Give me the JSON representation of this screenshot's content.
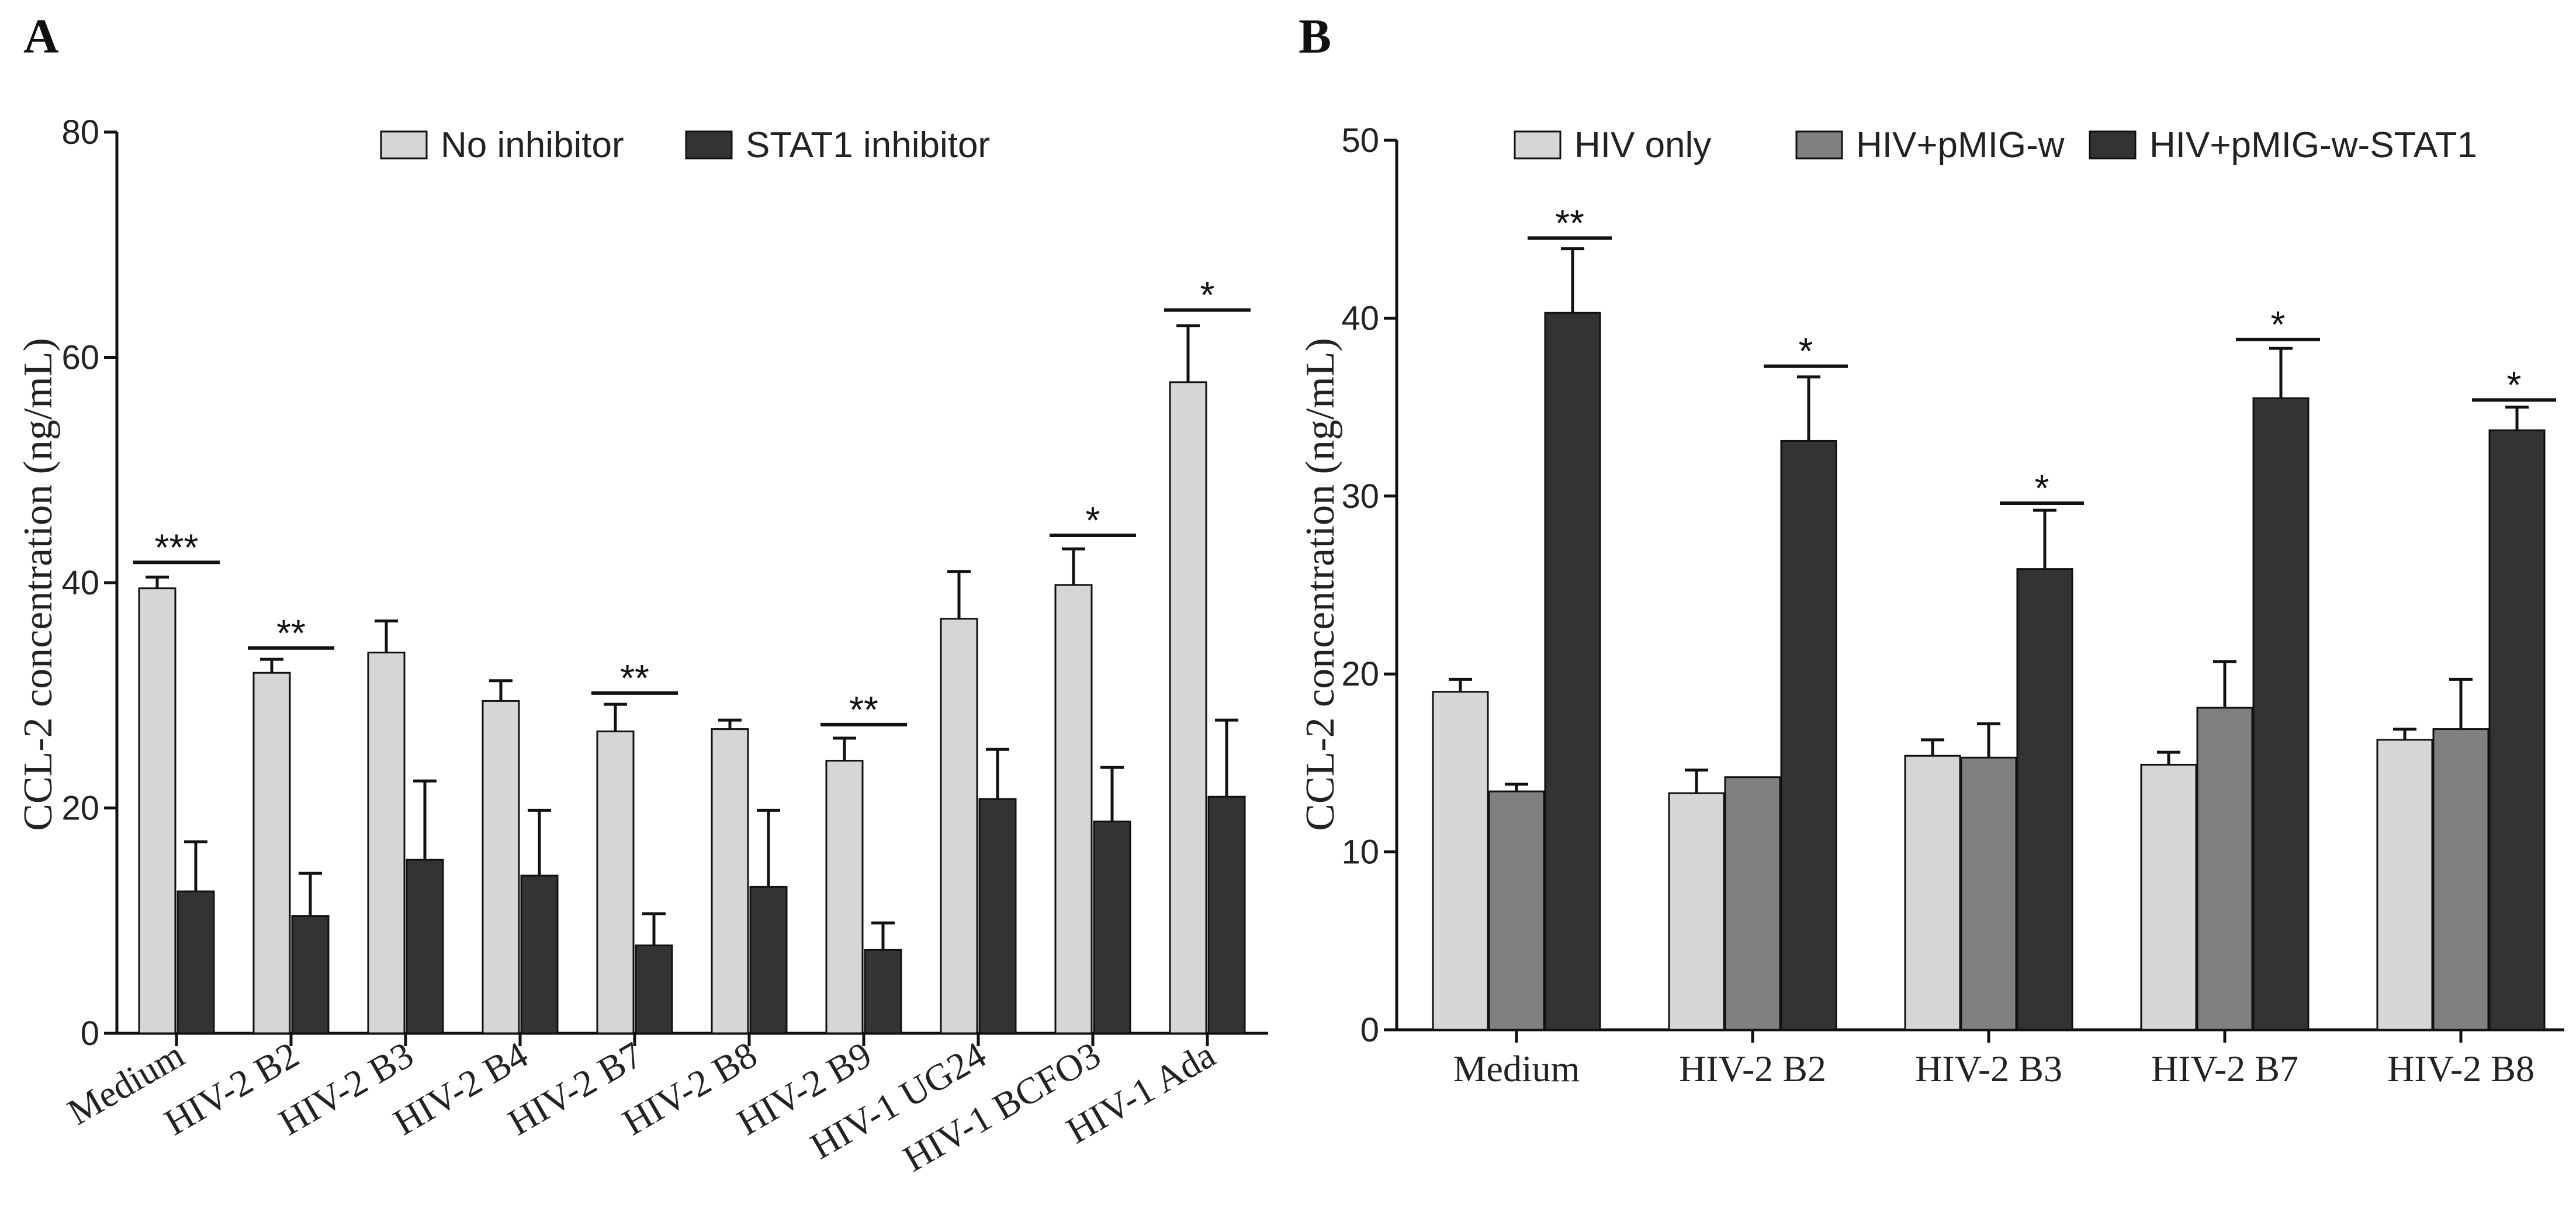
{
  "chart_data": [
    {
      "panel": "A",
      "type": "bar",
      "title": "",
      "xlabel": "",
      "ylabel": "CCL-2 concentration (ng/mL)",
      "ylim": [
        0,
        80
      ],
      "yticks": [
        0,
        20,
        40,
        60,
        80
      ],
      "grid": false,
      "legend_position": "top",
      "categories": [
        "Medium",
        "HIV-2 B2",
        "HIV-2 B3",
        "HIV-2 B4",
        "HIV-2 B7",
        "HIV-2 B8",
        "HIV-2 B9",
        "HIV-1 UG24",
        "HIV-1 BCFO3",
        "HIV-1 Ada"
      ],
      "series": [
        {
          "name": "No inhibitor",
          "color": "#d6d6d6",
          "values": [
            39.5,
            32,
            33.8,
            29.5,
            26.8,
            27,
            24.2,
            36.8,
            39.8,
            57.8
          ],
          "errors": [
            1,
            1.2,
            2.8,
            1.8,
            2.4,
            0.8,
            2,
            4.2,
            3.2,
            5
          ]
        },
        {
          "name": "STAT1 inhibitor",
          "color": "#333333",
          "values": [
            12.6,
            10.4,
            15.4,
            14,
            7.8,
            13,
            7.4,
            20.8,
            18.8,
            21
          ],
          "errors": [
            4.4,
            3.8,
            7,
            5.8,
            2.8,
            6.8,
            2.4,
            4.4,
            4.8,
            6.8
          ]
        }
      ],
      "annotations": [
        {
          "category_index": 0,
          "label": "***",
          "y": 41.8
        },
        {
          "category_index": 1,
          "label": "**",
          "y": 34.2
        },
        {
          "category_index": 4,
          "label": "**",
          "y": 30.2
        },
        {
          "category_index": 6,
          "label": "**",
          "y": 27.4
        },
        {
          "category_index": 8,
          "label": "*",
          "y": 44.2
        },
        {
          "category_index": 9,
          "label": "*",
          "y": 64.2
        }
      ]
    },
    {
      "panel": "B",
      "type": "bar",
      "title": "",
      "xlabel": "",
      "ylabel": "CCL-2 concentration (ng/mL)",
      "ylim": [
        0,
        50
      ],
      "yticks": [
        0,
        10,
        20,
        30,
        40,
        50
      ],
      "grid": false,
      "legend_position": "top",
      "categories": [
        "Medium",
        "HIV-2 B2",
        "HIV-2 B3",
        "HIV-2 B7",
        "HIV-2 B8"
      ],
      "series": [
        {
          "name": "HIV only",
          "color": "#d6d6d6",
          "values": [
            19,
            13.3,
            15.4,
            14.9,
            16.3
          ],
          "errors": [
            0.7,
            1.3,
            0.9,
            0.7,
            0.6
          ]
        },
        {
          "name": "HIV+pMIG-w",
          "color": "#808080",
          "values": [
            13.4,
            14.2,
            15.3,
            18.1,
            16.9
          ],
          "errors": [
            0.4,
            0,
            1.9,
            2.6,
            2.8
          ]
        },
        {
          "name": "HIV+pMIG-w-STAT1",
          "color": "#333333",
          "values": [
            40.3,
            33.1,
            25.9,
            35.5,
            33.7
          ],
          "errors": [
            3.6,
            3.6,
            3.3,
            2.8,
            1.3
          ]
        }
      ],
      "annotations": [
        {
          "category_index": 0,
          "label": "**",
          "y": 44.5
        },
        {
          "category_index": 1,
          "label": "*",
          "y": 37.3
        },
        {
          "category_index": 2,
          "label": "*",
          "y": 29.6
        },
        {
          "category_index": 3,
          "label": "*",
          "y": 38.8
        },
        {
          "category_index": 4,
          "label": "*",
          "y": 35.4
        }
      ]
    }
  ]
}
